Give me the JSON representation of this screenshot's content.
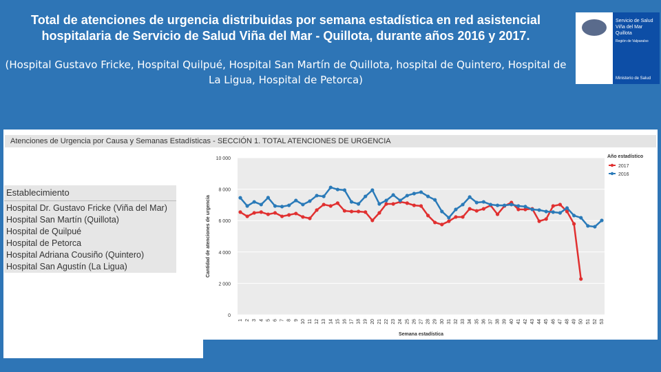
{
  "title": "Total de atenciones de urgencia distribuidas por semana estadística en red asistencial hospitalaria de Servicio de Salud Viña del Mar - Quillota, durante años 2016 y 2017.",
  "subtitle": "(Hospital Gustavo Fricke, Hospital Quilpué, Hospital San Martín de Quillota, hospital de Quintero, Hospital de La Ligua, Hospital de Petorca)",
  "logo": {
    "name": "Servicio de Salud Viña del Mar Quillota",
    "region": "Región de Valparaíso",
    "ministry": "Ministerio de Salud"
  },
  "report_header": "Atenciones de Urgencia por Causa y Semanas Estadísticas - SECCIÓN 1. TOTAL ATENCIONES DE URGENCIA",
  "filter": {
    "header": "Establecimiento",
    "items": [
      "Hospital Dr. Gustavo Fricke (Viña del Mar)",
      "Hospital San Martín (Quillota)",
      "Hospital de Quilpué",
      "Hospital de Petorca",
      "Hospital Adriana Cousiño (Quintero)",
      "Hospital San Agustín (La Ligua)"
    ]
  },
  "chart_data": {
    "type": "line",
    "x_label": "Semana estadística",
    "y_label": "Cantidad de atenciones de urgencia",
    "legend_title": "Año estadístico",
    "legend_position": "top-right",
    "grid": true,
    "categories": [
      "1",
      "2",
      "3",
      "4",
      "5",
      "6",
      "7",
      "8",
      "9",
      "10",
      "11",
      "12",
      "13",
      "14",
      "15",
      "16",
      "17",
      "18",
      "19",
      "20",
      "21",
      "22",
      "23",
      "24",
      "25",
      "26",
      "27",
      "28",
      "29",
      "30",
      "31",
      "32",
      "33",
      "34",
      "35",
      "36",
      "37",
      "38",
      "39",
      "40",
      "41",
      "42",
      "43",
      "44",
      "45",
      "46",
      "47",
      "48",
      "49",
      "50",
      "51",
      "52",
      "53"
    ],
    "ylim": [
      0,
      10000
    ],
    "yticks": [
      0,
      {
        "value": 2000,
        "label": "2 000"
      },
      {
        "value": 4000,
        "label": "4 000"
      },
      {
        "value": 6000,
        "label": "6 000"
      },
      {
        "value": 8000,
        "label": "8 000"
      },
      {
        "value": 10000,
        "label": "10 000"
      }
    ],
    "series": [
      {
        "name": "2017",
        "color": "#e03030",
        "values": [
          6540,
          6270,
          6490,
          6540,
          6400,
          6490,
          6270,
          6360,
          6450,
          6230,
          6140,
          6670,
          7020,
          6930,
          7110,
          6620,
          6580,
          6580,
          6540,
          6010,
          6490,
          7060,
          7060,
          7190,
          7110,
          6970,
          6930,
          6320,
          5880,
          5750,
          5960,
          6230,
          6230,
          6750,
          6620,
          6750,
          6970,
          6400,
          6930,
          7150,
          6710,
          6710,
          6750,
          5960,
          6100,
          6930,
          7020,
          6580,
          5790,
          2280,
          null,
          null,
          null
        ]
      },
      {
        "name": "2016",
        "color": "#2a7ab8",
        "values": [
          7450,
          6930,
          7190,
          7020,
          7460,
          6930,
          6890,
          6970,
          7280,
          7020,
          7240,
          7590,
          7540,
          8110,
          7980,
          7940,
          7190,
          7060,
          7540,
          7940,
          7060,
          7280,
          7630,
          7280,
          7590,
          7720,
          7810,
          7540,
          7320,
          6580,
          6180,
          6710,
          7020,
          7500,
          7150,
          7190,
          7020,
          6970,
          6970,
          7020,
          6930,
          6890,
          6710,
          6670,
          6580,
          6540,
          6490,
          6800,
          6320,
          6180,
          5660,
          5610,
          6010
        ]
      }
    ]
  }
}
